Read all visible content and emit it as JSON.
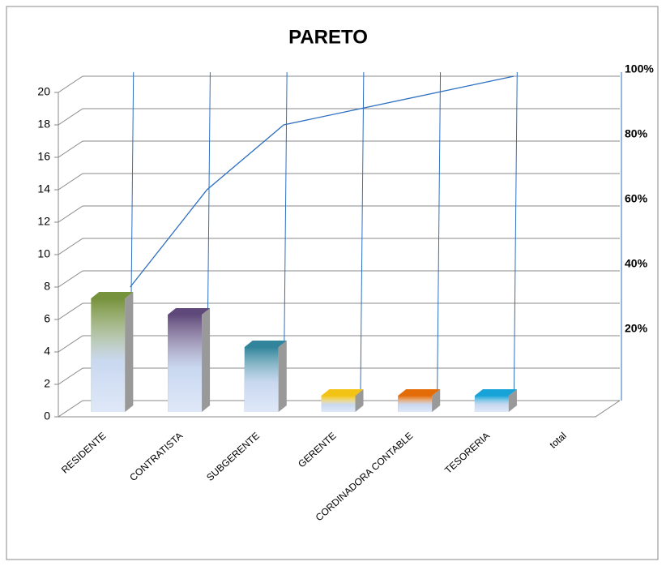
{
  "chart_data": {
    "type": "pareto",
    "title": "PARETO",
    "categories": [
      "RESIDENTE",
      "CONTRATISTA",
      "SUBGERENTE",
      "GERENTE",
      "CORDINADORA CONTABLE",
      "TESORERIA",
      "total"
    ],
    "values": [
      7,
      6,
      4,
      1,
      1,
      1,
      null
    ],
    "colors": [
      "#76923c",
      "#5f497a",
      "#31849b",
      "#f2c314",
      "#e36c09",
      "#17a2d8",
      "#4f81bd"
    ],
    "cumulative": {
      "axis": "y2",
      "values": [
        35,
        65,
        85,
        90,
        95,
        100,
        null
      ],
      "color": "#2e6fc0"
    },
    "ylim": [
      0,
      20
    ],
    "yticks": [
      0,
      2,
      4,
      6,
      8,
      10,
      12,
      14,
      16,
      18,
      20
    ],
    "y2lim": [
      0,
      100
    ],
    "y2ticks": [
      {
        "value": 20,
        "label": "20%"
      },
      {
        "value": 40,
        "label": "40%"
      },
      {
        "value": 60,
        "label": "60%"
      },
      {
        "value": 80,
        "label": "80%"
      },
      {
        "value": 100,
        "label": "100%"
      }
    ],
    "grid": true
  }
}
